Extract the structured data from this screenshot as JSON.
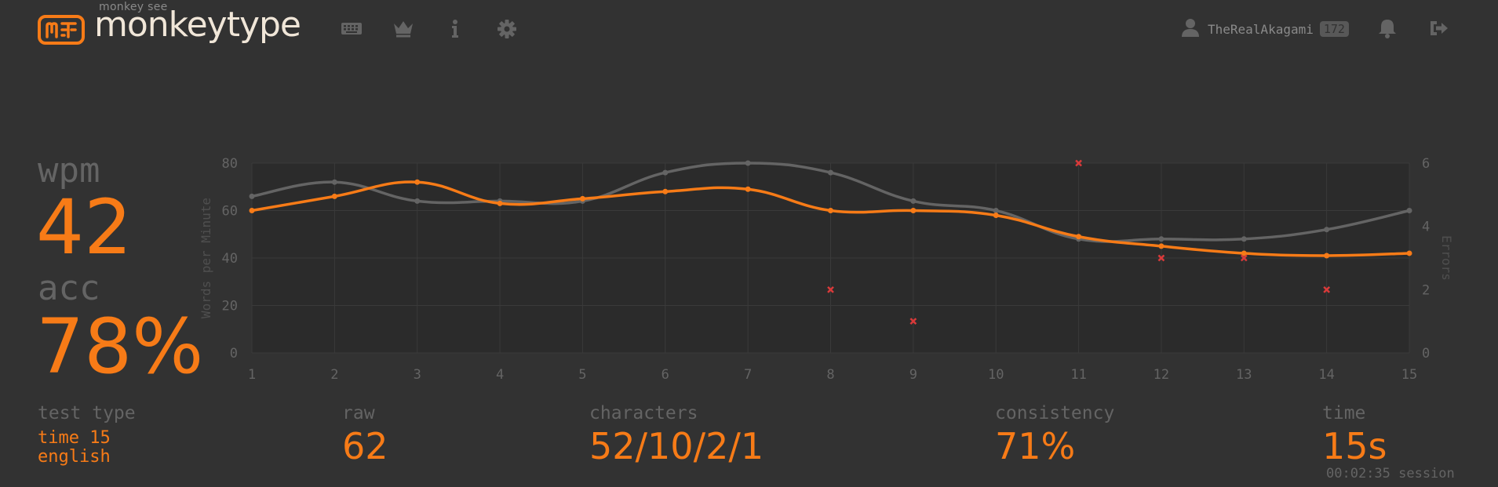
{
  "header": {
    "logo_small": "monkey see",
    "logo_text": "monkeytype",
    "nav_icons": [
      "keyboard-icon",
      "crown-icon",
      "info-icon",
      "gear-icon"
    ],
    "username": "TheRealAkagami",
    "level": "172",
    "right_icons": [
      "bell-icon",
      "logout-icon"
    ]
  },
  "result": {
    "wpm_label": "wpm",
    "wpm_value": "42",
    "acc_label": "acc",
    "acc_value": "78%"
  },
  "stats": {
    "test_type_label": "test type",
    "test_type_line1": "time 15",
    "test_type_line2": "english",
    "raw_label": "raw",
    "raw_value": "62",
    "characters_label": "characters",
    "characters_value": "52/10/2/1",
    "consistency_label": "consistency",
    "consistency_value": "71%",
    "time_label": "time",
    "time_value": "15s",
    "session_text": "00:02:35 session"
  },
  "colors": {
    "background": "#323232",
    "accent": "#f77b17",
    "sub": "#646464",
    "text": "#f0e6d8",
    "error": "#d93a3a"
  },
  "chart_data": {
    "type": "line",
    "x": [
      1,
      2,
      3,
      4,
      5,
      6,
      7,
      8,
      9,
      10,
      11,
      12,
      13,
      14,
      15
    ],
    "ylabel": "Words per Minute",
    "y2label": "Errors",
    "ylim": [
      0,
      80
    ],
    "y2lim": [
      0,
      6
    ],
    "yticks": [
      0,
      20,
      40,
      60,
      80
    ],
    "y2ticks": [
      0,
      2,
      4,
      6
    ],
    "grid": true,
    "series": [
      {
        "role": "raw",
        "axis": "left",
        "color": "#646464",
        "values": [
          66,
          72,
          64,
          64,
          64,
          76,
          80,
          76,
          64,
          60,
          48,
          48,
          48,
          52,
          60
        ]
      },
      {
        "role": "wpm",
        "axis": "left",
        "color": "#f77b17",
        "values": [
          60,
          66,
          72,
          63,
          65,
          68,
          69,
          60,
          60,
          58,
          49,
          45,
          42,
          41,
          42
        ]
      },
      {
        "role": "errors",
        "axis": "right",
        "color": "#d93a3a",
        "marker": "x",
        "points": [
          [
            8,
            2
          ],
          [
            9,
            1
          ],
          [
            11,
            6
          ],
          [
            12,
            3
          ],
          [
            13,
            3
          ],
          [
            14,
            2
          ]
        ]
      }
    ]
  }
}
